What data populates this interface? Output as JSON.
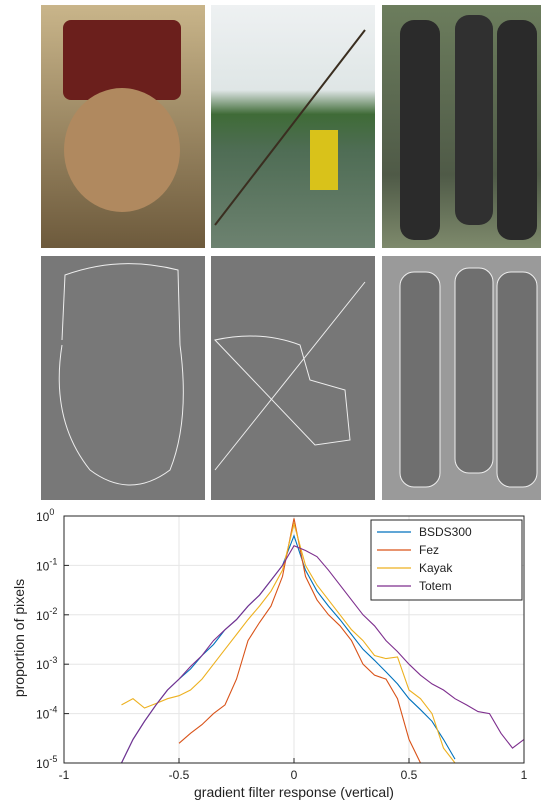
{
  "chart_data": {
    "type": "line",
    "xlabel": "gradient filter response (vertical)",
    "ylabel": "proportion of pixels",
    "x": [
      -0.75,
      -0.7,
      -0.65,
      -0.6,
      -0.55,
      -0.5,
      -0.45,
      -0.4,
      -0.35,
      -0.3,
      -0.25,
      -0.2,
      -0.15,
      -0.1,
      -0.05,
      0,
      0.05,
      0.1,
      0.15,
      0.2,
      0.25,
      0.3,
      0.35,
      0.4,
      0.45,
      0.5,
      0.55,
      0.6,
      0.65,
      0.7,
      0.75,
      0.8,
      0.85,
      0.9,
      0.95,
      1
    ],
    "series": [
      {
        "name": "BSDS300",
        "color": "#0072bd",
        "values": [
          1e-05,
          3e-05,
          7e-05,
          0.00015,
          0.0003,
          0.0005,
          0.0008,
          0.0015,
          0.0025,
          0.005,
          0.008,
          0.015,
          0.025,
          0.05,
          0.1,
          0.4,
          0.08,
          0.03,
          0.015,
          0.008,
          0.004,
          0.002,
          0.0012,
          0.0007,
          0.0004,
          0.0002,
          0.00012,
          7e-05,
          3e-05,
          1.2e-05,
          null,
          null,
          null,
          null,
          null,
          null
        ]
      },
      {
        "name": "Fez",
        "color": "#d95319",
        "values": [
          null,
          null,
          null,
          null,
          null,
          2.5e-05,
          4e-05,
          6e-05,
          0.0001,
          0.00015,
          0.0005,
          0.003,
          0.007,
          0.015,
          0.06,
          0.9,
          0.06,
          0.02,
          0.01,
          0.006,
          0.003,
          0.001,
          0.0006,
          0.0005,
          0.0002,
          3e-05,
          1e-05,
          null,
          null,
          null,
          null,
          null,
          null,
          null,
          null,
          null
        ]
      },
      {
        "name": "Kayak",
        "color": "#edb120",
        "values": [
          0.00015,
          0.0002,
          0.00013,
          0.00016,
          0.0002,
          0.00023,
          0.0003,
          0.0005,
          0.001,
          0.002,
          0.004,
          0.008,
          0.015,
          0.03,
          0.08,
          0.7,
          0.1,
          0.04,
          0.02,
          0.01,
          0.005,
          0.003,
          0.0015,
          0.0013,
          0.0014,
          0.0003,
          0.0002,
          0.0001,
          2e-05,
          1e-05,
          null,
          null,
          null,
          null,
          null,
          null
        ]
      },
      {
        "name": "Totem",
        "color": "#7e2f8e",
        "values": [
          1e-05,
          3e-05,
          7e-05,
          0.00015,
          0.0003,
          0.0005,
          0.0009,
          0.0015,
          0.003,
          0.005,
          0.008,
          0.015,
          0.025,
          0.05,
          0.1,
          0.25,
          0.2,
          0.15,
          0.08,
          0.04,
          0.02,
          0.01,
          0.006,
          0.003,
          0.0018,
          0.001,
          0.0006,
          0.0004,
          0.0003,
          0.0002,
          0.00015,
          0.00011,
          0.0001,
          4e-05,
          2e-05,
          3e-05
        ]
      }
    ],
    "xlim": [
      -1,
      1
    ],
    "xticks": [
      -1,
      -0.5,
      0,
      0.5,
      1
    ],
    "ylim": [
      1e-05,
      1
    ],
    "yscale": "log",
    "yticks": [
      {
        "value": 1e-05,
        "label": "10",
        "exponent": "-5"
      },
      {
        "value": 0.0001,
        "label": "10",
        "exponent": "-4"
      },
      {
        "value": 0.001,
        "label": "10",
        "exponent": "-3"
      },
      {
        "value": 0.01,
        "label": "10",
        "exponent": "-2"
      },
      {
        "value": 0.1,
        "label": "10",
        "exponent": "-1"
      },
      {
        "value": 1,
        "label": "10",
        "exponent": "0"
      }
    ],
    "grid": true,
    "legend": "upper-right"
  }
}
